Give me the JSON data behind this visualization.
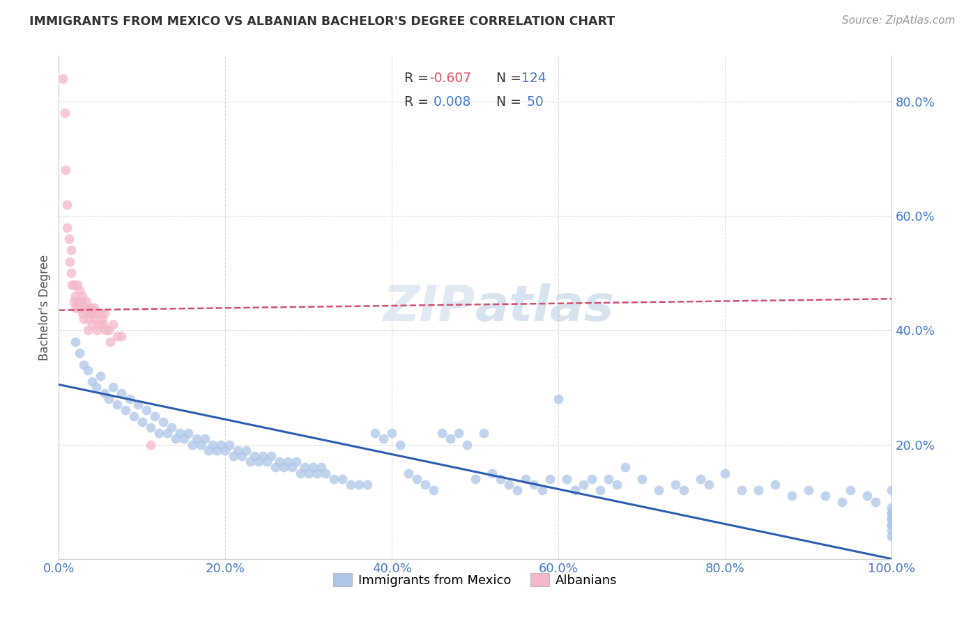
{
  "title": "IMMIGRANTS FROM MEXICO VS ALBANIAN BACHELOR'S DEGREE CORRELATION CHART",
  "source": "Source: ZipAtlas.com",
  "ylabel": "Bachelor's Degree",
  "ytick_values": [
    0.0,
    0.2,
    0.4,
    0.6,
    0.8
  ],
  "xtick_values": [
    0.0,
    0.2,
    0.4,
    0.6,
    0.8,
    1.0
  ],
  "xlim": [
    0.0,
    1.0
  ],
  "ylim": [
    0.0,
    0.88
  ],
  "legend_blue_label": "Immigrants from Mexico",
  "legend_pink_label": "Albanians",
  "blue_color": "#aec6e8",
  "blue_line_color": "#2a5db0",
  "pink_color": "#f4b8c8",
  "pink_line_color": "#d05070",
  "grid_color": "#d8d8d8",
  "axis_label_color": "#4477cc",
  "title_color": "#333333",
  "blue_scatter_x": [
    0.02,
    0.025,
    0.03,
    0.035,
    0.04,
    0.045,
    0.05,
    0.055,
    0.06,
    0.065,
    0.07,
    0.075,
    0.08,
    0.085,
    0.09,
    0.095,
    0.1,
    0.105,
    0.11,
    0.115,
    0.12,
    0.125,
    0.13,
    0.135,
    0.14,
    0.145,
    0.15,
    0.155,
    0.16,
    0.165,
    0.17,
    0.175,
    0.18,
    0.185,
    0.19,
    0.195,
    0.2,
    0.205,
    0.21,
    0.215,
    0.22,
    0.225,
    0.23,
    0.235,
    0.24,
    0.245,
    0.25,
    0.255,
    0.26,
    0.265,
    0.27,
    0.275,
    0.28,
    0.285,
    0.29,
    0.295,
    0.3,
    0.305,
    0.31,
    0.315,
    0.32,
    0.33,
    0.34,
    0.35,
    0.36,
    0.37,
    0.38,
    0.39,
    0.4,
    0.41,
    0.42,
    0.43,
    0.44,
    0.45,
    0.46,
    0.47,
    0.48,
    0.49,
    0.5,
    0.51,
    0.52,
    0.53,
    0.54,
    0.55,
    0.56,
    0.57,
    0.58,
    0.59,
    0.6,
    0.61,
    0.62,
    0.63,
    0.64,
    0.65,
    0.66,
    0.67,
    0.68,
    0.7,
    0.72,
    0.74,
    0.75,
    0.77,
    0.78,
    0.8,
    0.82,
    0.84,
    0.86,
    0.88,
    0.9,
    0.92,
    0.94,
    0.95,
    0.97,
    0.98,
    1.0,
    1.0,
    1.0,
    1.0,
    1.0,
    1.0,
    1.0,
    1.0,
    1.0,
    1.0
  ],
  "blue_scatter_y": [
    0.38,
    0.36,
    0.34,
    0.33,
    0.31,
    0.3,
    0.32,
    0.29,
    0.28,
    0.3,
    0.27,
    0.29,
    0.26,
    0.28,
    0.25,
    0.27,
    0.24,
    0.26,
    0.23,
    0.25,
    0.22,
    0.24,
    0.22,
    0.23,
    0.21,
    0.22,
    0.21,
    0.22,
    0.2,
    0.21,
    0.2,
    0.21,
    0.19,
    0.2,
    0.19,
    0.2,
    0.19,
    0.2,
    0.18,
    0.19,
    0.18,
    0.19,
    0.17,
    0.18,
    0.17,
    0.18,
    0.17,
    0.18,
    0.16,
    0.17,
    0.16,
    0.17,
    0.16,
    0.17,
    0.15,
    0.16,
    0.15,
    0.16,
    0.15,
    0.16,
    0.15,
    0.14,
    0.14,
    0.13,
    0.13,
    0.13,
    0.22,
    0.21,
    0.22,
    0.2,
    0.15,
    0.14,
    0.13,
    0.12,
    0.22,
    0.21,
    0.22,
    0.2,
    0.14,
    0.22,
    0.15,
    0.14,
    0.13,
    0.12,
    0.14,
    0.13,
    0.12,
    0.14,
    0.28,
    0.14,
    0.12,
    0.13,
    0.14,
    0.12,
    0.14,
    0.13,
    0.16,
    0.14,
    0.12,
    0.13,
    0.12,
    0.14,
    0.13,
    0.15,
    0.12,
    0.12,
    0.13,
    0.11,
    0.12,
    0.11,
    0.1,
    0.12,
    0.11,
    0.1,
    0.12,
    0.09,
    0.08,
    0.07,
    0.06,
    0.08,
    0.07,
    0.06,
    0.05,
    0.04
  ],
  "pink_scatter_x": [
    0.005,
    0.007,
    0.008,
    0.01,
    0.01,
    0.012,
    0.013,
    0.015,
    0.015,
    0.016,
    0.018,
    0.018,
    0.02,
    0.02,
    0.022,
    0.022,
    0.023,
    0.025,
    0.025,
    0.027,
    0.028,
    0.028,
    0.03,
    0.03,
    0.032,
    0.033,
    0.034,
    0.035,
    0.035,
    0.036,
    0.038,
    0.038,
    0.04,
    0.04,
    0.042,
    0.043,
    0.045,
    0.046,
    0.048,
    0.05,
    0.052,
    0.053,
    0.055,
    0.056,
    0.06,
    0.062,
    0.065,
    0.07,
    0.075,
    0.11
  ],
  "pink_scatter_y": [
    0.84,
    0.78,
    0.68,
    0.62,
    0.58,
    0.56,
    0.52,
    0.54,
    0.5,
    0.48,
    0.48,
    0.45,
    0.46,
    0.44,
    0.48,
    0.45,
    0.44,
    0.47,
    0.44,
    0.45,
    0.46,
    0.43,
    0.44,
    0.42,
    0.44,
    0.45,
    0.44,
    0.43,
    0.4,
    0.42,
    0.44,
    0.43,
    0.43,
    0.41,
    0.44,
    0.42,
    0.43,
    0.4,
    0.41,
    0.43,
    0.42,
    0.41,
    0.43,
    0.4,
    0.4,
    0.38,
    0.41,
    0.39,
    0.39,
    0.2
  ],
  "blue_trend_x": [
    0.0,
    1.0
  ],
  "blue_trend_y": [
    0.305,
    0.0
  ],
  "pink_trend_x": [
    0.0,
    1.0
  ],
  "pink_trend_y": [
    0.435,
    0.455
  ]
}
